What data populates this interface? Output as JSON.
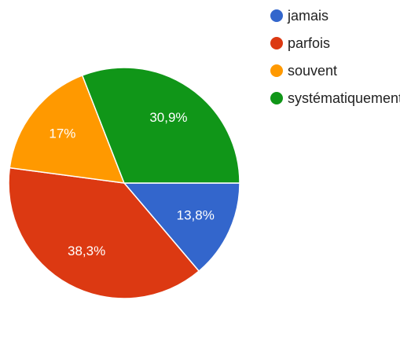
{
  "chart_data": {
    "type": "pie",
    "title": "",
    "slices": [
      {
        "label": "jamais",
        "value": 13.8,
        "display": "13,8%",
        "color": "#3366cc"
      },
      {
        "label": "parfois",
        "value": 38.3,
        "display": "38,3%",
        "color": "#dc3912"
      },
      {
        "label": "souvent",
        "value": 17.0,
        "display": "17%",
        "color": "#ff9900"
      },
      {
        "label": "systématiquement",
        "value": 30.9,
        "display": "30,9%",
        "color": "#109618"
      }
    ],
    "legend_position": "right",
    "start_angle": "3 o'clock",
    "direction": "clockwise"
  },
  "legend": {
    "items": [
      {
        "label": "jamais",
        "color": "#3366cc"
      },
      {
        "label": "parfois",
        "color": "#dc3912"
      },
      {
        "label": "souvent",
        "color": "#ff9900"
      },
      {
        "label": "systématiquement",
        "color": "#109618"
      }
    ]
  }
}
